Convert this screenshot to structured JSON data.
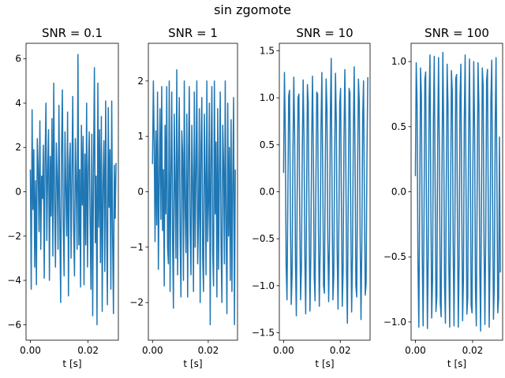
{
  "figure": {
    "suptitle": "sin zgomote"
  },
  "colors": {
    "line": "#1f77b4",
    "axes": "#000000"
  },
  "chart_data": [
    {
      "type": "line",
      "title": "SNR = 0.1",
      "xlabel": "t [s]",
      "ylabel": "",
      "xlim": [
        -0.0015,
        0.0305
      ],
      "ylim": [
        -6.7,
        6.7
      ],
      "xticks": [
        0.0,
        0.02
      ],
      "xtick_labels": [
        "0.00",
        "0.02"
      ],
      "yticks": [
        -6,
        -4,
        -2,
        0,
        2,
        4,
        6
      ],
      "ytick_labels": [
        "−6",
        "−4",
        "−2",
        "0",
        "2",
        "4",
        "6"
      ],
      "series": [
        {
          "x": [
            0.0,
            0.0003,
            0.0006,
            0.0009,
            0.0012,
            0.0015,
            0.0018,
            0.0021,
            0.0024,
            0.0027,
            0.003,
            0.0033,
            0.0036,
            0.0039,
            0.0042,
            0.0045,
            0.0048,
            0.0051,
            0.0054,
            0.0057,
            0.006,
            0.0063,
            0.0066,
            0.0069,
            0.0072,
            0.0075,
            0.0078,
            0.0081,
            0.0084,
            0.0087,
            0.009,
            0.0093,
            0.0096,
            0.0099,
            0.0102,
            0.0105,
            0.0108,
            0.0111,
            0.0114,
            0.0117,
            0.012,
            0.0123,
            0.0126,
            0.0129,
            0.0132,
            0.0135,
            0.0138,
            0.0141,
            0.0144,
            0.0147,
            0.015,
            0.0153,
            0.0156,
            0.0159,
            0.0162,
            0.0165,
            0.0168,
            0.0171,
            0.0174,
            0.0177,
            0.018,
            0.0183,
            0.0186,
            0.0189,
            0.0192,
            0.0195,
            0.0198,
            0.0201,
            0.0204,
            0.0207,
            0.021,
            0.0213,
            0.0216,
            0.0219,
            0.0222,
            0.0225,
            0.0228,
            0.0231,
            0.0234,
            0.0237,
            0.024,
            0.0243,
            0.0246,
            0.0249,
            0.0252,
            0.0255,
            0.0258,
            0.0261,
            0.0264,
            0.0267,
            0.027,
            0.0273,
            0.0276,
            0.0279,
            0.0282,
            0.0285,
            0.0288,
            0.0291,
            0.0294,
            0.0297
          ],
          "y": [
            1.0,
            -4.4,
            3.7,
            -0.8,
            1.9,
            -3.4,
            0.5,
            -4.2,
            2.4,
            1.1,
            -1.8,
            3.2,
            -2.6,
            0.7,
            -0.3,
            2.1,
            -3.9,
            1.4,
            4.0,
            -2.2,
            0.9,
            2.8,
            -4.0,
            1.6,
            -1.1,
            3.3,
            -2.9,
            4.9,
            -0.4,
            -3.4,
            2.2,
            0.6,
            -2.6,
            3.9,
            -1.3,
            -5.0,
            1.8,
            4.6,
            -1.5,
            -3.8,
            2.7,
            0.1,
            -2.0,
            3.6,
            -4.7,
            1.2,
            2.2,
            -3.0,
            0.8,
            4.3,
            -1.7,
            -3.8,
            2.4,
            0.3,
            -2.6,
            6.2,
            -2.4,
            1.0,
            -4.3,
            3.0,
            -0.6,
            2.5,
            -4.2,
            1.7,
            -2.4,
            4.0,
            -3.4,
            0.9,
            2.7,
            -1.2,
            -4.4,
            2.6,
            -5.6,
            1.1,
            5.6,
            -2.3,
            0.7,
            -6.0,
            4.9,
            -1.6,
            2.8,
            -3.2,
            3.4,
            -5.4,
            0.4,
            2.3,
            -3.6,
            4.1,
            -1.3,
            -5.1,
            3.8,
            -0.7,
            1.9,
            -4.4,
            4.1,
            -2.0,
            -5.5,
            1.2,
            -1.2,
            1.3
          ]
        }
      ]
    },
    {
      "type": "line",
      "title": "SNR = 1",
      "xlabel": "t [s]",
      "ylabel": "",
      "xlim": [
        -0.0015,
        0.0305
      ],
      "ylim": [
        -2.68,
        2.68
      ],
      "xticks": [
        0.0,
        0.02
      ],
      "xtick_labels": [
        "0.00",
        "0.02"
      ],
      "yticks": [
        -2,
        -1,
        0,
        1,
        2
      ],
      "ytick_labels": [
        "−2",
        "−1",
        "0",
        "1",
        "2"
      ],
      "series": [
        {
          "x": [
            0.0,
            0.0003,
            0.0006,
            0.0009,
            0.0012,
            0.0015,
            0.0018,
            0.0021,
            0.0024,
            0.0027,
            0.003,
            0.0033,
            0.0036,
            0.0039,
            0.0042,
            0.0045,
            0.0048,
            0.0051,
            0.0054,
            0.0057,
            0.006,
            0.0063,
            0.0066,
            0.0069,
            0.0072,
            0.0075,
            0.0078,
            0.0081,
            0.0084,
            0.0087,
            0.009,
            0.0093,
            0.0096,
            0.0099,
            0.0102,
            0.0105,
            0.0108,
            0.0111,
            0.0114,
            0.0117,
            0.012,
            0.0123,
            0.0126,
            0.0129,
            0.0132,
            0.0135,
            0.0138,
            0.0141,
            0.0144,
            0.0147,
            0.015,
            0.0153,
            0.0156,
            0.0159,
            0.0162,
            0.0165,
            0.0168,
            0.0171,
            0.0174,
            0.0177,
            0.018,
            0.0183,
            0.0186,
            0.0189,
            0.0192,
            0.0195,
            0.0198,
            0.0201,
            0.0204,
            0.0207,
            0.021,
            0.0213,
            0.0216,
            0.0219,
            0.0222,
            0.0225,
            0.0228,
            0.0231,
            0.0234,
            0.0237,
            0.024,
            0.0243,
            0.0246,
            0.0249,
            0.0252,
            0.0255,
            0.0258,
            0.0261,
            0.0264,
            0.0267,
            0.027,
            0.0273,
            0.0276,
            0.0279,
            0.0282,
            0.0285,
            0.0288,
            0.0291,
            0.0294,
            0.0297
          ],
          "y": [
            0.5,
            2.0,
            0.9,
            -0.9,
            1.1,
            -0.6,
            1.8,
            -1.4,
            0.2,
            1.5,
            -0.5,
            1.9,
            -0.7,
            0.4,
            -1.7,
            1.2,
            -0.4,
            1.9,
            -1.0,
            -1.3,
            2.0,
            -1.8,
            0.3,
            1.8,
            -0.9,
            -2.1,
            1.4,
            0.1,
            -1.2,
            2.2,
            -1.5,
            0.5,
            1.7,
            -0.8,
            -1.9,
            1.1,
            0.7,
            -1.6,
            2.0,
            -0.3,
            -1.1,
            1.4,
            -1.9,
            0.6,
            1.9,
            -0.7,
            -1.5,
            1.2,
            0.2,
            -1.8,
            1.8,
            -1.0,
            0.4,
            2.0,
            -1.3,
            -0.5,
            1.5,
            -2.0,
            0.8,
            1.7,
            -1.2,
            -1.8,
            1.4,
            0.3,
            -1.5,
            2.0,
            -0.9,
            -0.2,
            1.6,
            -2.4,
            0.6,
            1.9,
            -1.1,
            -1.7,
            2.0,
            -0.4,
            0.9,
            -1.9,
            1.5,
            -1.4,
            0.3,
            1.8,
            -1.0,
            -2.0,
            1.2,
            0.5,
            -1.3,
            2.0,
            -0.6,
            -2.2,
            1.6,
            -0.8,
            0.8,
            -1.6,
            1.3,
            -1.8,
            0.2,
            1.7,
            -2.4,
            0.4
          ]
        }
      ]
    },
    {
      "type": "line",
      "title": "SNR = 10",
      "xlabel": "t [s]",
      "ylabel": "",
      "xlim": [
        -0.0015,
        0.0305
      ],
      "ylim": [
        -1.58,
        1.58
      ],
      "xticks": [
        0.0,
        0.02
      ],
      "xtick_labels": [
        "0.00",
        "0.02"
      ],
      "yticks": [
        -1.5,
        -1.0,
        -0.5,
        0.0,
        0.5,
        1.0,
        1.5
      ],
      "ytick_labels": [
        "−1.5",
        "−1.0",
        "−0.5",
        "0.0",
        "0.5",
        "1.0",
        "1.5"
      ],
      "series": [
        {
          "x": [
            0.0,
            0.0003,
            0.0006,
            0.0009,
            0.0012,
            0.0015,
            0.0018,
            0.0021,
            0.0024,
            0.0027,
            0.003,
            0.0033,
            0.0036,
            0.0039,
            0.0042,
            0.0045,
            0.0048,
            0.0051,
            0.0054,
            0.0057,
            0.006,
            0.0063,
            0.0066,
            0.0069,
            0.0072,
            0.0075,
            0.0078,
            0.0081,
            0.0084,
            0.0087,
            0.009,
            0.0093,
            0.0096,
            0.0099,
            0.0102,
            0.0105,
            0.0108,
            0.0111,
            0.0114,
            0.0117,
            0.012,
            0.0123,
            0.0126,
            0.0129,
            0.0132,
            0.0135,
            0.0138,
            0.0141,
            0.0144,
            0.0147,
            0.015,
            0.0153,
            0.0156,
            0.0159,
            0.0162,
            0.0165,
            0.0168,
            0.0171,
            0.0174,
            0.0177,
            0.018,
            0.0183,
            0.0186,
            0.0189,
            0.0192,
            0.0195,
            0.0198,
            0.0201,
            0.0204,
            0.0207,
            0.021,
            0.0213,
            0.0216,
            0.0219,
            0.0222,
            0.0225,
            0.0228,
            0.0231,
            0.0234,
            0.0237,
            0.024,
            0.0243,
            0.0246,
            0.0249,
            0.0252,
            0.0255,
            0.0258,
            0.0261,
            0.0264,
            0.0267,
            0.027,
            0.0273,
            0.0276,
            0.0279,
            0.0282,
            0.0285,
            0.0288,
            0.0291,
            0.0294,
            0.0297
          ],
          "y": [
            0.2,
            1.27,
            0.65,
            -0.78,
            -1.15,
            -0.1,
            1.02,
            1.08,
            -0.2,
            -1.2,
            -0.89,
            0.43,
            1.22,
            0.61,
            -0.75,
            -1.32,
            -0.02,
            1.0,
            1.04,
            -0.27,
            -1.15,
            -0.8,
            0.45,
            1.19,
            0.58,
            -0.7,
            -1.3,
            -0.18,
            1.14,
            0.95,
            -0.33,
            -1.27,
            -0.68,
            0.55,
            1.23,
            0.41,
            -0.9,
            -1.16,
            0.12,
            1.06,
            1.04,
            -0.42,
            -1.22,
            -0.61,
            0.68,
            1.27,
            0.22,
            -1.0,
            -1.08,
            0.23,
            1.2,
            0.88,
            -0.5,
            -1.17,
            -0.5,
            0.85,
            1.42,
            -0.02,
            -1.15,
            -0.9,
            0.35,
            1.26,
            0.74,
            -0.62,
            -1.25,
            -0.35,
            0.94,
            1.1,
            -0.15,
            -1.22,
            -0.83,
            0.55,
            1.3,
            0.55,
            -0.85,
            -1.4,
            -0.06,
            1.1,
            1.05,
            -0.3,
            -1.28,
            -0.7,
            0.65,
            1.33,
            0.38,
            -1.0,
            -1.12,
            0.2,
            1.2,
            0.95,
            -0.5,
            -1.36,
            -0.55,
            0.8,
            1.18,
            -0.06,
            -1.1,
            -0.98,
            0.36,
            1.22
          ]
        }
      ]
    },
    {
      "type": "line",
      "title": "SNR = 100",
      "xlabel": "t [s]",
      "ylabel": "",
      "xlim": [
        -0.0015,
        0.0305
      ],
      "ylim": [
        -1.14,
        1.14
      ],
      "xticks": [
        0.0,
        0.02
      ],
      "xtick_labels": [
        "0.00",
        "0.02"
      ],
      "yticks": [
        -1.0,
        -0.5,
        0.0,
        0.5,
        1.0
      ],
      "ytick_labels": [
        "−1.0",
        "−0.5",
        "0.0",
        "0.5",
        "1.0"
      ],
      "series": [
        {
          "x": [
            0.0,
            0.0003,
            0.0006,
            0.0009,
            0.0012,
            0.0015,
            0.0018,
            0.0021,
            0.0024,
            0.0027,
            0.003,
            0.0033,
            0.0036,
            0.0039,
            0.0042,
            0.0045,
            0.0048,
            0.0051,
            0.0054,
            0.0057,
            0.006,
            0.0063,
            0.0066,
            0.0069,
            0.0072,
            0.0075,
            0.0078,
            0.0081,
            0.0084,
            0.0087,
            0.009,
            0.0093,
            0.0096,
            0.0099,
            0.0102,
            0.0105,
            0.0108,
            0.0111,
            0.0114,
            0.0117,
            0.012,
            0.0123,
            0.0126,
            0.0129,
            0.0132,
            0.0135,
            0.0138,
            0.0141,
            0.0144,
            0.0147,
            0.015,
            0.0153,
            0.0156,
            0.0159,
            0.0162,
            0.0165,
            0.0168,
            0.0171,
            0.0174,
            0.0177,
            0.018,
            0.0183,
            0.0186,
            0.0189,
            0.0192,
            0.0195,
            0.0198,
            0.0201,
            0.0204,
            0.0207,
            0.021,
            0.0213,
            0.0216,
            0.0219,
            0.0222,
            0.0225,
            0.0228,
            0.0231,
            0.0234,
            0.0237,
            0.024,
            0.0243,
            0.0246,
            0.0249,
            0.0252,
            0.0255,
            0.0258,
            0.0261,
            0.0264,
            0.0267,
            0.027,
            0.0273,
            0.0276,
            0.0279,
            0.0282,
            0.0285,
            0.0288,
            0.0291,
            0.0294,
            0.0297
          ],
          "y": [
            0.12,
            0.99,
            0.67,
            -0.55,
            -1.04,
            -0.1,
            0.95,
            0.74,
            -0.48,
            -1.03,
            -0.28,
            0.86,
            0.92,
            -0.24,
            -1.05,
            -0.48,
            0.71,
            1.05,
            -0.08,
            -0.97,
            -0.68,
            0.55,
            1.04,
            0.08,
            -0.92,
            -0.8,
            0.4,
            1.03,
            0.28,
            -0.86,
            -0.96,
            0.18,
            1.07,
            0.47,
            -0.72,
            -1.01,
            0.06,
            0.98,
            0.66,
            -0.57,
            -1.04,
            -0.09,
            0.93,
            0.77,
            -0.4,
            -1.03,
            -0.3,
            0.87,
            0.9,
            -0.22,
            -1.04,
            -0.52,
            0.72,
            0.98,
            -0.09,
            -0.99,
            -0.67,
            0.56,
            1.05,
            0.06,
            -0.94,
            -0.82,
            0.42,
            1.02,
            0.28,
            -0.87,
            -0.93,
            0.2,
            1.0,
            0.48,
            -0.75,
            -1.03,
            0.04,
            0.99,
            0.66,
            -0.57,
            -1.07,
            -0.11,
            0.95,
            0.81,
            -0.42,
            -1.02,
            -0.31,
            0.86,
            0.94,
            -0.2,
            -1.04,
            -0.51,
            0.7,
            1.01,
            -0.06,
            -0.98,
            -0.71,
            0.52,
            1.03,
            0.09,
            -0.93,
            -0.82,
            0.42,
            -0.62
          ]
        }
      ]
    }
  ]
}
